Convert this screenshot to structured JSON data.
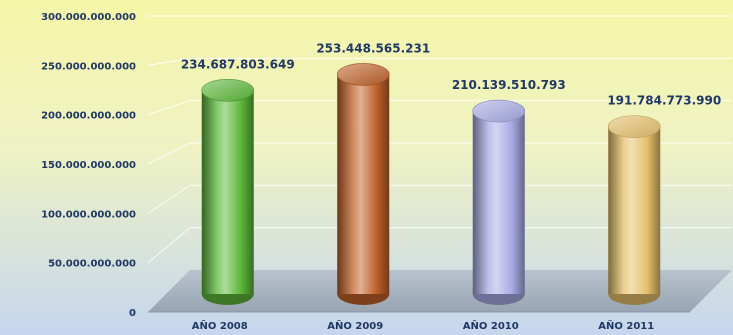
{
  "chart_data": {
    "type": "bar",
    "style": "3d-cylinder",
    "categories": [
      "AÑO 2008",
      "AÑO 2009",
      "AÑO 2010",
      "AÑO 2011"
    ],
    "values": [
      234687803649,
      253448565231,
      210139510793,
      191784773990
    ],
    "value_labels": [
      "234.687.803.649",
      "253.448.565.231",
      "210.139.510.793",
      "191.784.773.990"
    ],
    "yticks": [
      0,
      50000000000,
      100000000000,
      150000000000,
      200000000000,
      250000000000,
      300000000000
    ],
    "ytick_labels": [
      "0",
      "50.000.000.000",
      "100.000.000.000",
      "150.000.000.000",
      "200.000.000.000",
      "250.000.000.000",
      "300.000.000.000"
    ],
    "ylim": [
      0,
      300000000000
    ],
    "grid": true,
    "legend": "none",
    "colors": [
      "#5cb83a",
      "#c0622a",
      "#a8abe4",
      "#e5c06a"
    ],
    "background_gradient": [
      "#f6f6a8",
      "#c6d6ee"
    ]
  }
}
